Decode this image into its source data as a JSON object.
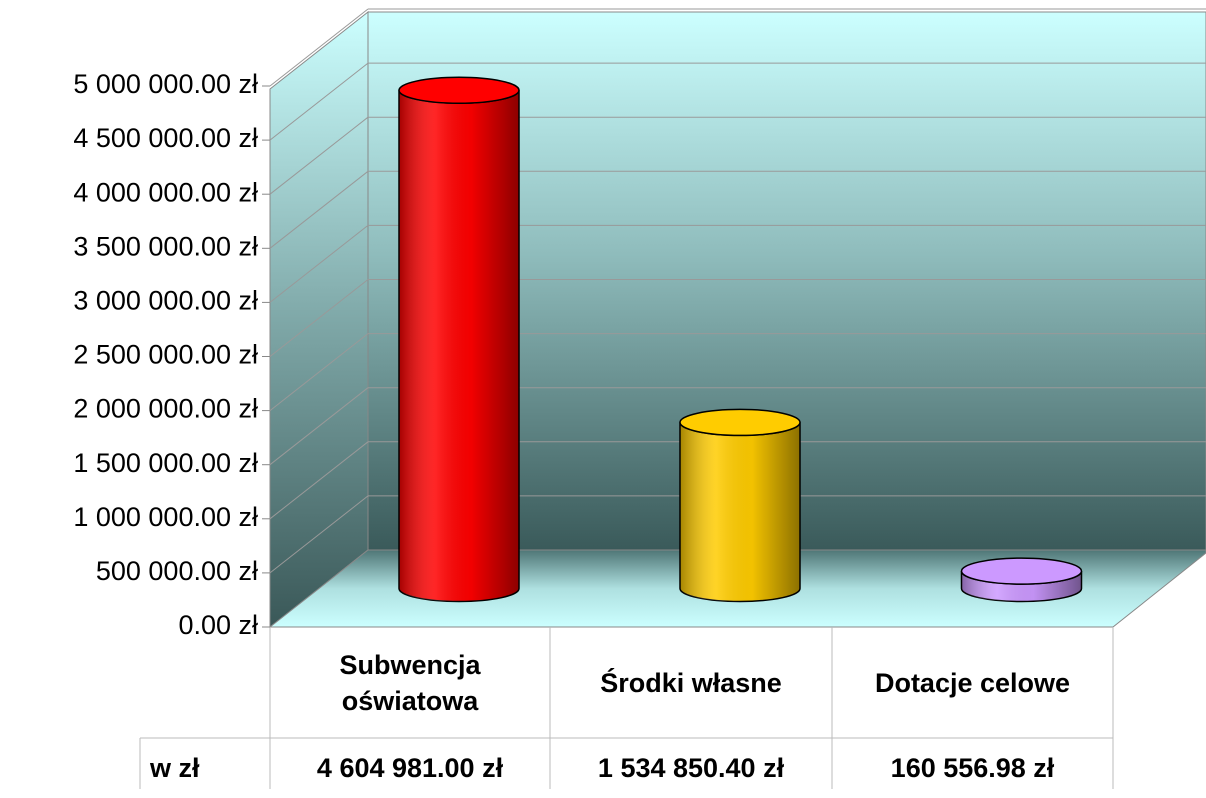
{
  "chart_data": {
    "type": "bar3d",
    "categories": [
      "Subwencja oświatowa",
      "Środki własne",
      "Dotacje celowe"
    ],
    "series": [
      {
        "name": "w zł",
        "colors": [
          "#ff0000",
          "#ffcc00",
          "#cc99ff"
        ],
        "values": [
          4604981,
          1534850.4,
          160556.98
        ],
        "value_labels": [
          "4 604 981.00 zł",
          "1 534 850.40 zł",
          "160 556.98 zł"
        ]
      }
    ],
    "ylim": [
      0,
      5000000
    ],
    "yticks": [
      {
        "value": 0,
        "label": "0.00 zł"
      },
      {
        "value": 500000,
        "label": "500 000.00 zł"
      },
      {
        "value": 1000000,
        "label": "1 000 000.00 zł"
      },
      {
        "value": 1500000,
        "label": "1 500 000.00 zł"
      },
      {
        "value": 2000000,
        "label": "2 000 000.00 zł"
      },
      {
        "value": 2500000,
        "label": "2 500 000.00 zł"
      },
      {
        "value": 3000000,
        "label": "3 000 000.00 zł"
      },
      {
        "value": 3500000,
        "label": "3 500 000.00 zł"
      },
      {
        "value": 4000000,
        "label": "4 000 000.00 zł"
      },
      {
        "value": 4500000,
        "label": "4 500 000.00 zł"
      },
      {
        "value": 5000000,
        "label": "5 000 000.00 zł"
      }
    ],
    "grid": true
  }
}
